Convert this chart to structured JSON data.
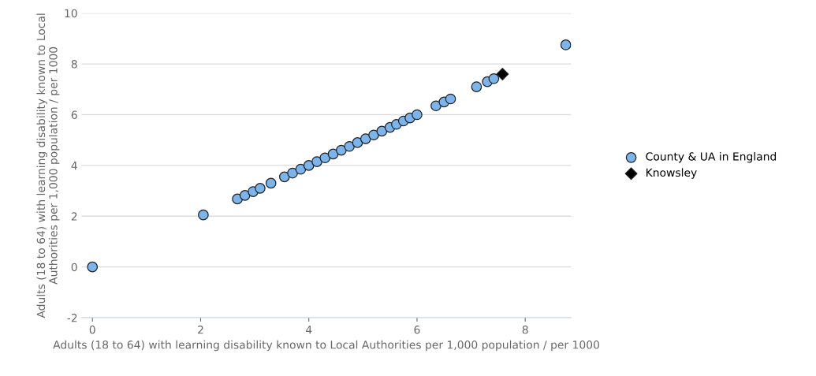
{
  "chart_data": {
    "type": "scatter",
    "xlabel": "Adults (18 to 64) with learning disability known to Local Authorities per 1,000 population / per 1000",
    "ylabel": "Adults (18 to 64) with learning disability known to Local Authorities per 1,000 population / per 1000",
    "xlim": [
      -0.2,
      8.85
    ],
    "ylim": [
      -2,
      10
    ],
    "xticks": [
      0,
      2,
      4,
      6,
      8
    ],
    "yticks": [
      -2,
      0,
      2,
      4,
      6,
      8,
      10
    ],
    "grid": "y",
    "legend": "right",
    "series": [
      {
        "name": "County & UA in England",
        "color": "#7cb5ec",
        "marker": "circle",
        "x": [
          0,
          2.05,
          2.68,
          2.82,
          2.97,
          3.1,
          3.3,
          3.55,
          3.7,
          3.85,
          4.0,
          4.15,
          4.3,
          4.45,
          4.6,
          4.75,
          4.9,
          5.05,
          5.2,
          5.35,
          5.5,
          5.62,
          5.75,
          5.87,
          6.0,
          6.35,
          6.5,
          6.62,
          7.1,
          7.3,
          7.42,
          8.75
        ],
        "values": [
          0,
          2.05,
          2.68,
          2.82,
          2.97,
          3.1,
          3.3,
          3.55,
          3.7,
          3.85,
          4.0,
          4.15,
          4.3,
          4.45,
          4.6,
          4.75,
          4.9,
          5.05,
          5.2,
          5.35,
          5.5,
          5.62,
          5.75,
          5.87,
          6.0,
          6.35,
          6.5,
          6.62,
          7.1,
          7.3,
          7.42,
          8.75
        ]
      },
      {
        "name": "Knowsley",
        "color": "#000000",
        "marker": "diamond",
        "x": [
          7.58
        ],
        "values": [
          7.6
        ]
      }
    ]
  }
}
